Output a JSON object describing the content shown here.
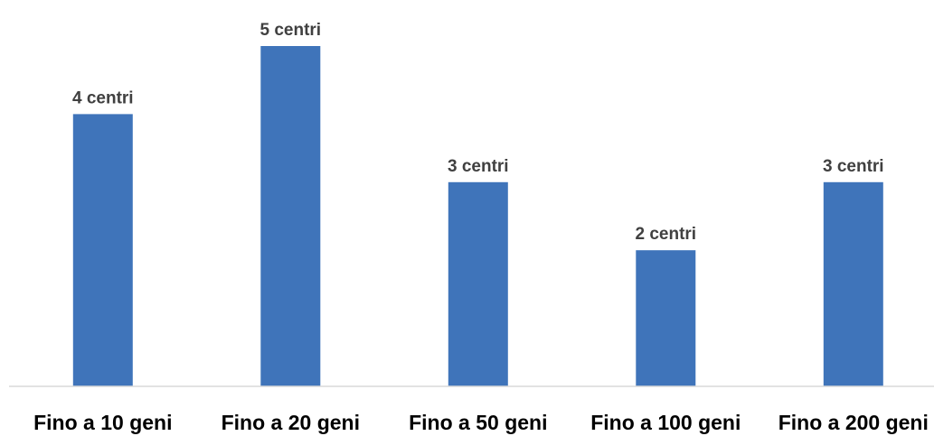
{
  "chart_data": {
    "type": "bar",
    "categories": [
      "Fino a 10 geni",
      "Fino a 20 geni",
      "Fino a 50 geni",
      "Fino a 100 geni",
      "Fino a 200 geni"
    ],
    "values": [
      4,
      5,
      3,
      2,
      3
    ],
    "data_labels": [
      "4 centri",
      "5 centri",
      "3 centri",
      "2 centri",
      "3 centri"
    ],
    "title": "",
    "xlabel": "",
    "ylabel": "",
    "ylim": [
      0,
      5
    ],
    "grid": false,
    "legend": "none",
    "bar_color": "#3f74ba",
    "axis_color": "#d9d9d9"
  }
}
